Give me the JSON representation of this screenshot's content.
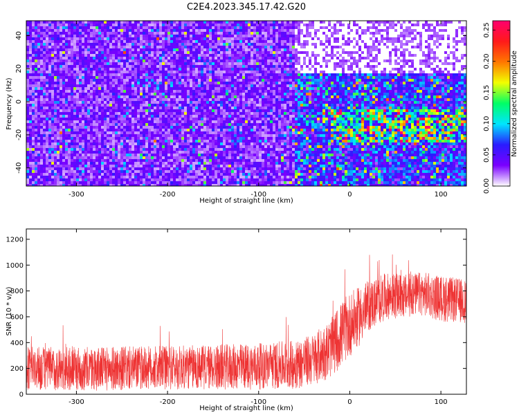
{
  "figure": {
    "title": "C2E4.2023.345.17.42.G20"
  },
  "chart_data": [
    {
      "type": "heatmap",
      "xlabel": "Height of straight line (km)",
      "ylabel": "Frequency (Hz)",
      "xlim": [
        -355,
        128
      ],
      "ylim": [
        -51,
        49
      ],
      "xticks": [
        -300,
        -200,
        -100,
        0,
        100
      ],
      "yticks": [
        -40,
        -20,
        0,
        20,
        40
      ],
      "colorbar": {
        "label": "Normalized spectral amplitude",
        "range": [
          0.0,
          0.265
        ],
        "ticks": [
          "0.00",
          "0.05",
          "0.10",
          "0.15",
          "0.20",
          "0.25"
        ],
        "colormap": [
          "#ffffff",
          "#7a00ff",
          "#2a1bff",
          "#00e5ff",
          "#00ff66",
          "#f2ff00",
          "#ff7700",
          "#ff1a1a",
          "#ff006e"
        ]
      },
      "features": [
        {
          "x_range": [
            -355,
            -60
          ],
          "y_range": [
            -51,
            49
          ],
          "typical_amplitude": 0.03
        },
        {
          "x_range": [
            -60,
            128
          ],
          "y_range": [
            18,
            49
          ],
          "typical_amplitude": 0.0
        },
        {
          "x_range": [
            -60,
            128
          ],
          "y_range": [
            -51,
            18
          ],
          "typical_amplitude": 0.06
        },
        {
          "x_range": [
            -20,
            128
          ],
          "y_range": [
            -25,
            -5
          ],
          "typical_amplitude": 0.12
        }
      ]
    },
    {
      "type": "line",
      "xlabel": "Height of straight line (km)",
      "ylabel": "SNR (10 * v/v)",
      "xlim": [
        -355,
        128
      ],
      "ylim": [
        0,
        1280
      ],
      "xticks": [
        -300,
        -200,
        -100,
        0,
        100
      ],
      "yticks": [
        0,
        200,
        400,
        600,
        800,
        1000,
        1200
      ],
      "color": "#ee3333",
      "envelope": {
        "x": [
          -355,
          -300,
          -250,
          -200,
          -150,
          -100,
          -60,
          -40,
          -20,
          -10,
          0,
          10,
          20,
          30,
          40,
          60,
          80,
          100,
          128
        ],
        "mean": [
          200,
          195,
          200,
          205,
          210,
          215,
          230,
          270,
          360,
          460,
          540,
          600,
          680,
          720,
          760,
          760,
          780,
          740,
          720
        ],
        "spread": [
          170,
          170,
          170,
          170,
          175,
          180,
          190,
          200,
          230,
          250,
          250,
          230,
          200,
          190,
          180,
          170,
          170,
          180,
          170
        ]
      }
    }
  ]
}
